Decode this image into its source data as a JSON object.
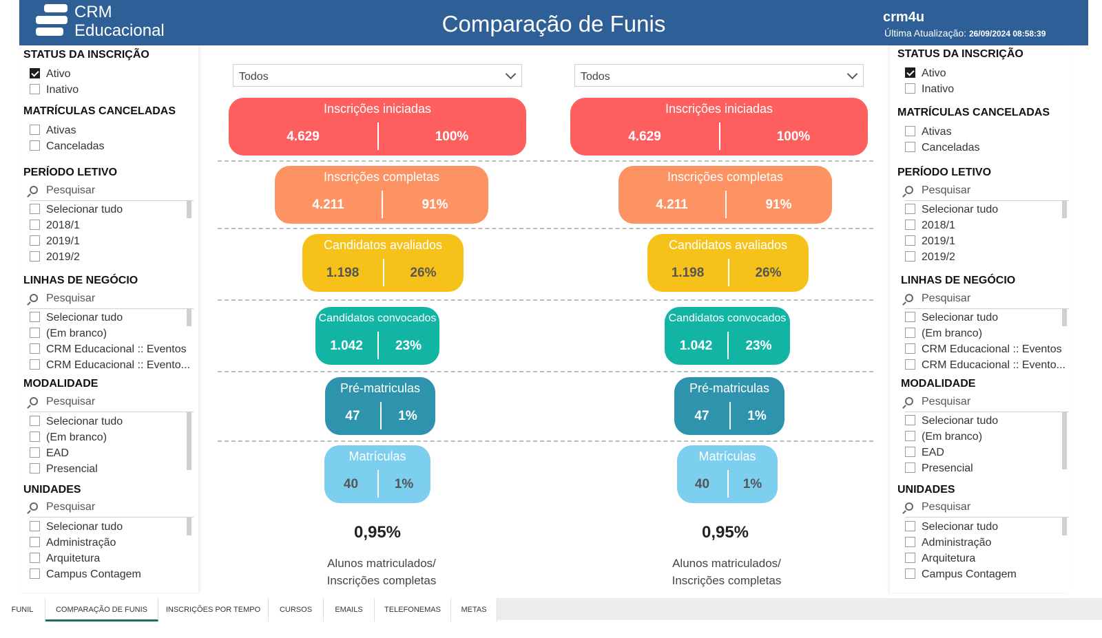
{
  "header": {
    "logo_line1": "CRM",
    "logo_line2": "Educacional",
    "title": "Comparação de Funis",
    "user": "crm4u",
    "last_update_label": "Última Atualização:",
    "last_update_value": "26/09/2024 08:58:39"
  },
  "filters": {
    "status_title": "STATUS DA INSCRIÇÃO",
    "status_options": [
      "Ativo",
      "Inativo"
    ],
    "status_checked": "Ativo",
    "cancel_title": "MATRÍCULAS CANCELADAS",
    "cancel_options": [
      "Ativas",
      "Canceladas"
    ],
    "periodo_title": "PERÍODO LETIVO",
    "search_placeholder": "Pesquisar",
    "periodo_options": [
      "Selecionar tudo",
      "2018/1",
      "2019/1",
      "2019/2"
    ],
    "linhas_title": "LINHAS DE NEGÓCIO",
    "linhas_options": [
      "Selecionar tudo",
      "(Em branco)",
      "CRM Educacional :: Eventos",
      "CRM Educacional :: Evento..."
    ],
    "modalidade_title": "MODALIDADE",
    "modalidade_options": [
      "Selecionar tudo",
      "(Em branco)",
      "EAD",
      "Presencial"
    ],
    "unidades_title": "UNIDADES",
    "unidades_options": [
      "Selecionar tudo",
      "Administração",
      "Arquitetura",
      "Campus Contagem"
    ]
  },
  "funnels": [
    {
      "dropdown": "Todos",
      "stages": [
        {
          "title": "Inscrições iniciadas",
          "value": "4.629",
          "pct": "100%"
        },
        {
          "title": "Inscrições completas",
          "value": "4.211",
          "pct": "91%"
        },
        {
          "title": "Candidatos avaliados",
          "value": "1.198",
          "pct": "26%"
        },
        {
          "title": "Candidatos convocados",
          "value": "1.042",
          "pct": "23%"
        },
        {
          "title": "Pré-matriculas",
          "value": "47",
          "pct": "1%"
        },
        {
          "title": "Matrículas",
          "value": "40",
          "pct": "1%"
        }
      ],
      "ratio": "0,95%",
      "ratio_label_1": "Alunos matriculados/",
      "ratio_label_2": "Inscrições completas"
    },
    {
      "dropdown": "Todos",
      "stages": [
        {
          "title": "Inscrições iniciadas",
          "value": "4.629",
          "pct": "100%"
        },
        {
          "title": "Inscrições completas",
          "value": "4.211",
          "pct": "91%"
        },
        {
          "title": "Candidatos avaliados",
          "value": "1.198",
          "pct": "26%"
        },
        {
          "title": "Candidatos convocados",
          "value": "1.042",
          "pct": "23%"
        },
        {
          "title": "Pré-matriculas",
          "value": "47",
          "pct": "1%"
        },
        {
          "title": "Matrículas",
          "value": "40",
          "pct": "1%"
        }
      ],
      "ratio": "0,95%",
      "ratio_label_1": "Alunos matriculados/",
      "ratio_label_2": "Inscrições completas"
    }
  ],
  "stage_colors": [
    "#fd5f5f",
    "#fd9262",
    "#f6c21a",
    "#12b5a3",
    "#2e93ad",
    "#7ccfee"
  ],
  "tabs": [
    "FUNIL",
    "COMPARAÇÃO DE FUNIS",
    "INSCRIÇÕES POR TEMPO",
    "CURSOS",
    "EMAILS",
    "TELEFONEMAS",
    "METAS"
  ],
  "active_tab": "COMPARAÇÃO DE FUNIS"
}
